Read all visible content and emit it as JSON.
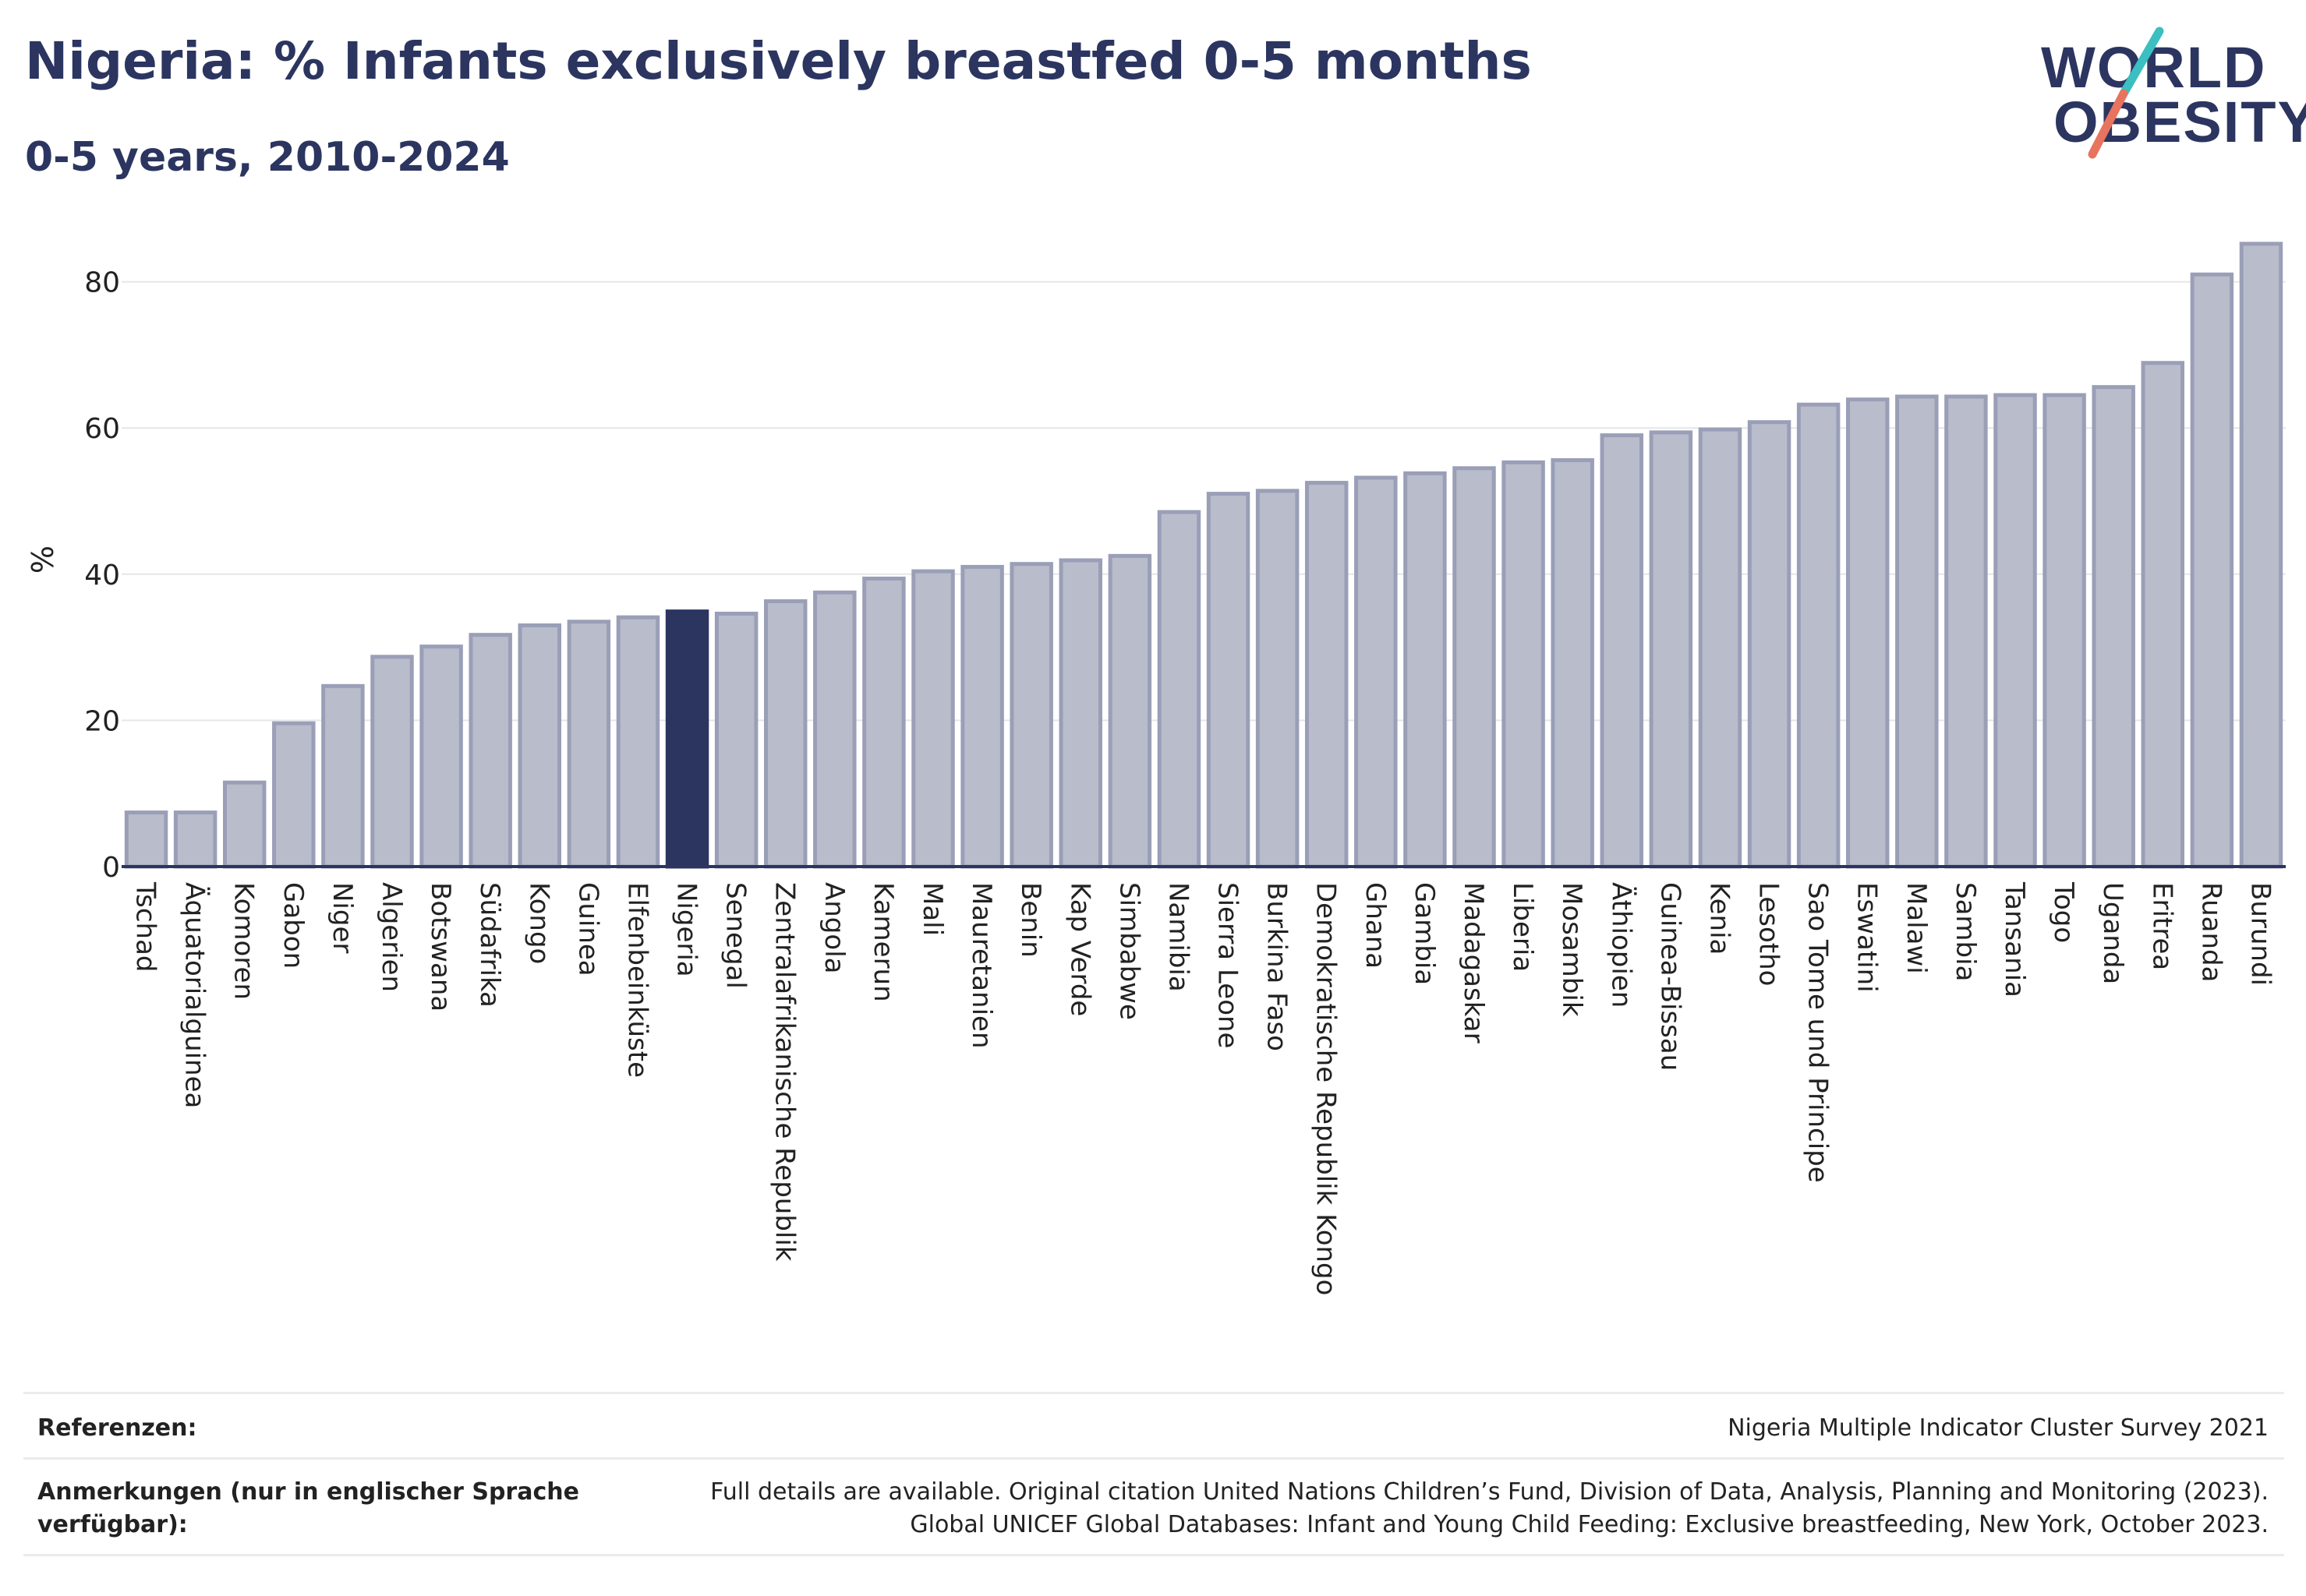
{
  "header": {
    "title": "Nigeria: % Infants exclusively breastfed 0-5 months",
    "subtitle": "0-5 years, 2010-2024"
  },
  "logo": {
    "line1": "WORLD",
    "line2": "OBESITY"
  },
  "colors": {
    "bar": "#b9bccb",
    "bar_edge": "#9a9fb7",
    "highlight": "#2b3560",
    "grid": "#e6e6ea",
    "text": "#2b3560",
    "logo_teal": "#3bbfc0",
    "logo_coral": "#e8735f"
  },
  "chart_data": {
    "type": "bar",
    "ylabel": "%",
    "ylim": [
      0,
      90
    ],
    "yticks": [
      0,
      20,
      40,
      60,
      80
    ],
    "grid": true,
    "highlight": "Nigeria",
    "categories": [
      "Tschad",
      "Äquatorialguinea",
      "Komoren",
      "Gabon",
      "Niger",
      "Algerien",
      "Botswana",
      "Südafrika",
      "Kongo",
      "Guinea",
      "Elfenbeinküste",
      "Nigeria",
      "Senegal",
      "Zentralafrikanische Republik",
      "Angola",
      "Kamerun",
      "Mali",
      "Mauretanien",
      "Benin",
      "Kap Verde",
      "Simbabwe",
      "Namibia",
      "Sierra Leone",
      "Burkina Faso",
      "Demokratische Republik Kongo",
      "Ghana",
      "Gambia",
      "Madagaskar",
      "Liberia",
      "Mosambik",
      "Äthiopien",
      "Guinea-Bissau",
      "Kenia",
      "Lesotho",
      "Sao Tome und Principe",
      "Eswatini",
      "Malawi",
      "Sambia",
      "Tansania",
      "Togo",
      "Uganda",
      "Eritrea",
      "Ruanda",
      "Burundi"
    ],
    "values": [
      7.4,
      7.4,
      11.5,
      19.6,
      24.7,
      28.7,
      30.1,
      31.7,
      33.0,
      33.5,
      34.1,
      34.9,
      34.6,
      36.3,
      37.5,
      39.4,
      40.4,
      41.0,
      41.4,
      41.9,
      42.5,
      48.5,
      51.0,
      51.4,
      52.5,
      53.2,
      53.8,
      54.5,
      55.3,
      55.6,
      59.0,
      59.4,
      59.8,
      60.8,
      63.2,
      63.9,
      64.3,
      64.3,
      64.5,
      64.5,
      65.6,
      68.9,
      81.0,
      85.2
    ]
  },
  "footer": {
    "ref_label": "Referenzen:",
    "ref_text": "Nigeria Multiple Indicator Cluster Survey 2021",
    "notes_label_1": "Anmerkungen (nur in englischer Sprache",
    "notes_label_2": "verfügbar):",
    "notes_text_1": "Full details are available. Original citation United Nations Children’s Fund, Division of Data, Analysis, Planning and Monitoring (2023).",
    "notes_text_2": "Global UNICEF Global Databases: Infant and Young Child Feeding: Exclusive breastfeeding, New York, October 2023."
  }
}
